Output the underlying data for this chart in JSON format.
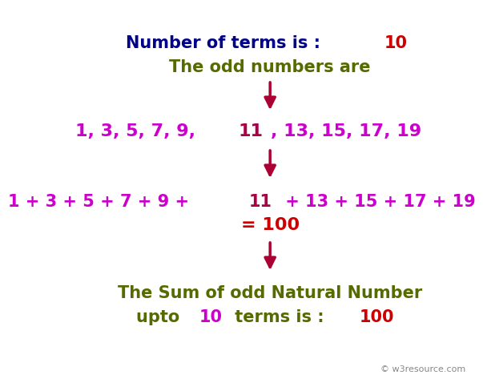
{
  "background_color": "#ffffff",
  "title_line1_text": "Number of terms is : ",
  "title_line1_highlight": "10",
  "title_line1_color": "#00008B",
  "title_line1_highlight_color": "#cc0000",
  "title_line2": "The odd numbers are",
  "title_line2_color": "#556B00",
  "odd_numbers_purple": "1, 3, 5, 7, 9, ",
  "odd_numbers_red": "11",
  "odd_numbers_purple2": ", 13, 15, 17, 19",
  "odd_color": "#cc00cc",
  "odd_red_color": "#aa0044",
  "sum_line_purple": "1 + 3 + 5 + 7 + 9 + ",
  "sum_line_red": "11",
  "sum_line_purple2": " + 13 + 15 + 17 + 19",
  "sum_result": "= 100",
  "sum_color": "#cc00cc",
  "sum_red_color": "#aa0044",
  "sum_result_color": "#cc0000",
  "final_line1": "The Sum of odd Natural Number",
  "final_line2_pre": "upto ",
  "final_line2_highlight1": "10",
  "final_line2_mid": " terms is : ",
  "final_line2_highlight2": "100",
  "final_color": "#556B00",
  "final_highlight_color": "#cc00cc",
  "final_highlight2_color": "#cc0000",
  "arrow_color": "#aa0033",
  "watermark": "© w3resource.com",
  "watermark_color": "#888888",
  "font_size_title": 15,
  "font_size_body": 16,
  "font_size_sum": 15,
  "font_size_final": 15
}
